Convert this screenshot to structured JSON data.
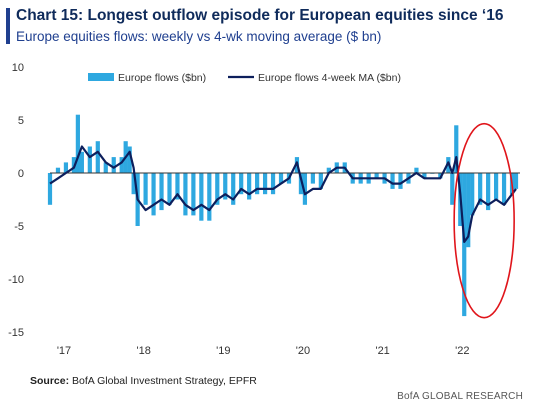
{
  "header": {
    "title": "Chart 15: Longest outflow episode for European equities since ‘16",
    "subtitle": "Europe equities flows: weekly vs 4-wk moving average ($ bn)"
  },
  "footer": {
    "source_label": "Source:",
    "source_text": "BofA Global Investment Strategy, EPFR",
    "credit": "BofA GLOBAL RESEARCH"
  },
  "colors": {
    "bars": "#2ea8e0",
    "ma_line": "#0d1f5c",
    "highlight": "#e0151b",
    "zero_line": "#333333"
  },
  "chart_data": {
    "type": "bar",
    "xlabel": "",
    "ylabel": "",
    "ylim": [
      -15,
      10
    ],
    "y_ticks": [
      10,
      5,
      0,
      -5,
      -10,
      -15
    ],
    "x_tick_labels": [
      "'17",
      "'18",
      "'19",
      "'20",
      "'21",
      "'22"
    ],
    "x_ticks_year": [
      2017,
      2018,
      2019,
      2020,
      2021,
      2022
    ],
    "x_range_year": [
      2017.0,
      2022.9
    ],
    "legend_position": "top",
    "annotation": "red ellipse highlighting 2022 outflows",
    "series": [
      {
        "name": "Europe flows ($bn)",
        "kind": "bar",
        "x": [
          2017.0,
          2017.1,
          2017.2,
          2017.3,
          2017.35,
          2017.4,
          2017.5,
          2017.6,
          2017.7,
          2017.8,
          2017.9,
          2017.95,
          2018.0,
          2018.05,
          2018.1,
          2018.2,
          2018.3,
          2018.4,
          2018.5,
          2018.6,
          2018.7,
          2018.8,
          2018.9,
          2019.0,
          2019.1,
          2019.2,
          2019.3,
          2019.4,
          2019.5,
          2019.6,
          2019.7,
          2019.8,
          2019.9,
          2020.0,
          2020.1,
          2020.15,
          2020.2,
          2020.3,
          2020.4,
          2020.5,
          2020.6,
          2020.7,
          2020.8,
          2020.9,
          2021.0,
          2021.1,
          2021.2,
          2021.3,
          2021.4,
          2021.5,
          2021.6,
          2021.7,
          2021.8,
          2021.9,
          2022.0,
          2022.05,
          2022.1,
          2022.15,
          2022.2,
          2022.25,
          2022.3,
          2022.4,
          2022.5,
          2022.6,
          2022.7,
          2022.8,
          2022.85
        ],
        "values": [
          -3,
          0.5,
          1,
          1.5,
          5.5,
          2,
          2.5,
          3,
          1,
          1.5,
          1.5,
          3,
          2.5,
          -2,
          -5,
          -3,
          -4,
          -3.5,
          -3,
          -2.5,
          -4,
          -4,
          -4.5,
          -4.5,
          -3,
          -2.5,
          -3,
          -2,
          -2.5,
          -2,
          -2,
          -2,
          -1,
          -1,
          1.5,
          -2,
          -3,
          -1,
          -1.5,
          0.5,
          1,
          1,
          -1,
          -1,
          -1,
          -0.5,
          -1,
          -1.5,
          -1.5,
          -1,
          0.5,
          -0.5,
          0,
          -0.5,
          1.5,
          -3,
          4.5,
          -5,
          -13.5,
          -7,
          -4,
          -3,
          -3.5,
          -2.5,
          -3,
          -2,
          -1.5
        ]
      },
      {
        "name": "Europe flows 4-week MA ($bn)",
        "kind": "line",
        "x": [
          2017.0,
          2017.1,
          2017.2,
          2017.3,
          2017.4,
          2017.5,
          2017.6,
          2017.7,
          2017.8,
          2017.9,
          2018.0,
          2018.05,
          2018.1,
          2018.2,
          2018.3,
          2018.4,
          2018.5,
          2018.6,
          2018.7,
          2018.8,
          2018.9,
          2019.0,
          2019.1,
          2019.2,
          2019.3,
          2019.4,
          2019.5,
          2019.6,
          2019.7,
          2019.8,
          2019.9,
          2020.0,
          2020.1,
          2020.15,
          2020.2,
          2020.3,
          2020.4,
          2020.5,
          2020.6,
          2020.7,
          2020.8,
          2020.9,
          2021.0,
          2021.1,
          2021.2,
          2021.3,
          2021.4,
          2021.5,
          2021.6,
          2021.7,
          2021.8,
          2021.9,
          2022.0,
          2022.05,
          2022.1,
          2022.15,
          2022.2,
          2022.25,
          2022.3,
          2022.4,
          2022.5,
          2022.6,
          2022.7,
          2022.8,
          2022.85
        ],
        "values": [
          -1,
          -0.5,
          0,
          0.5,
          2.5,
          1.5,
          2,
          1,
          0.5,
          1,
          2,
          0.5,
          -2.5,
          -3.5,
          -3,
          -2.5,
          -3,
          -2,
          -3,
          -3.5,
          -3,
          -3.5,
          -2.5,
          -2,
          -2.5,
          -1.5,
          -2,
          -1.5,
          -1.5,
          -1.5,
          -1,
          -0.5,
          1,
          -0.5,
          -2,
          -1.5,
          -1.5,
          0,
          0.5,
          0.5,
          -0.5,
          -0.5,
          -0.5,
          -0.5,
          -0.5,
          -1,
          -1,
          -0.5,
          0,
          -0.5,
          -0.5,
          -0.5,
          1,
          0,
          1.5,
          -2,
          -6.5,
          -6,
          -4,
          -2.5,
          -3,
          -2.5,
          -3,
          -2,
          -1.5
        ]
      }
    ]
  }
}
